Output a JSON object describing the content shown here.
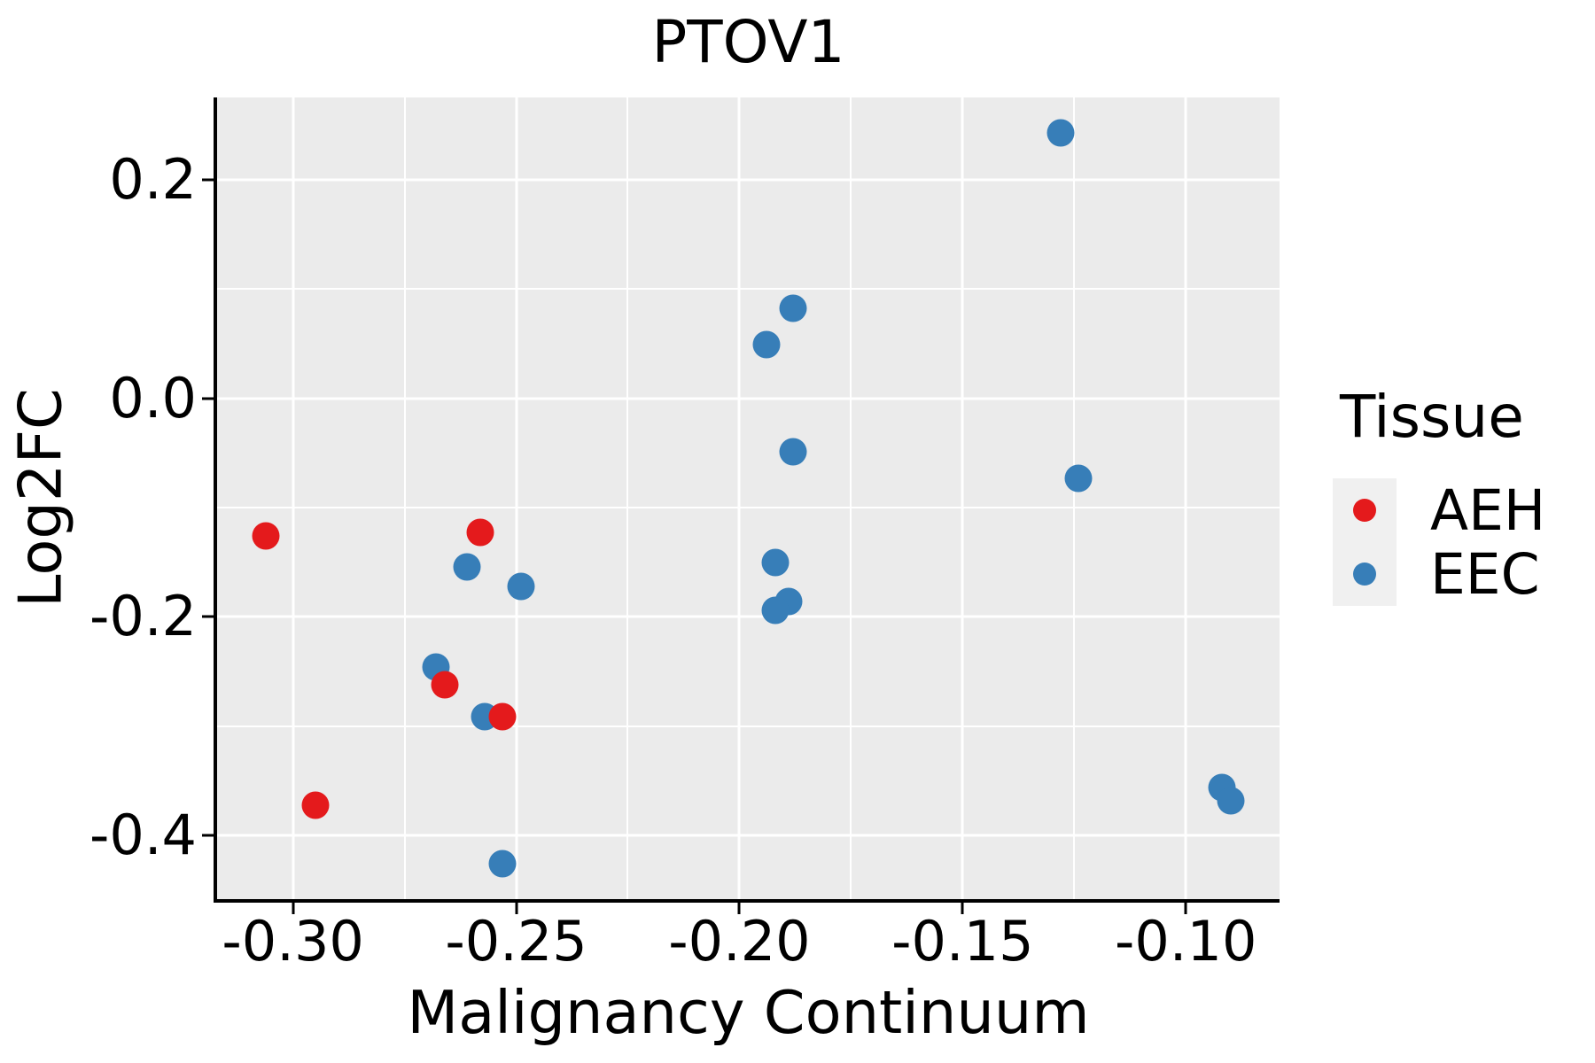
{
  "chart_data": {
    "type": "scatter",
    "title": "PTOV1",
    "xlabel": "Malignancy Continuum",
    "ylabel": "Log2FC",
    "xlim": [
      -0.317,
      -0.079
    ],
    "ylim": [
      -0.458,
      0.275
    ],
    "grid": true,
    "panel_background": "#EBEBEB",
    "gridline_color": "#FFFFFF",
    "axis_color": "#000000",
    "x_ticks": [
      {
        "value": -0.3,
        "label": "-0.30"
      },
      {
        "value": -0.25,
        "label": "-0.25"
      },
      {
        "value": -0.2,
        "label": "-0.20"
      },
      {
        "value": -0.15,
        "label": "-0.15"
      },
      {
        "value": -0.1,
        "label": "-0.10"
      }
    ],
    "y_ticks": [
      {
        "value": 0.2,
        "label": "0.2"
      },
      {
        "value": 0.0,
        "label": "0.0"
      },
      {
        "value": -0.2,
        "label": "-0.2"
      },
      {
        "value": -0.4,
        "label": "-0.4"
      }
    ],
    "x_minor_ticks": [
      -0.275,
      -0.225,
      -0.175,
      -0.125
    ],
    "y_minor_ticks": [
      0.1,
      -0.1,
      -0.3
    ],
    "legend": {
      "title": "Tissue",
      "position": "right",
      "key_fill": "#F0F0F0"
    },
    "series": [
      {
        "name": "AEH",
        "color": "#E41A1C",
        "points": [
          [
            -0.306,
            -0.126
          ],
          [
            -0.258,
            -0.123
          ],
          [
            -0.266,
            -0.262
          ],
          [
            -0.253,
            -0.291
          ],
          [
            -0.295,
            -0.372
          ]
        ]
      },
      {
        "name": "EEC",
        "color": "#377EB8",
        "points": [
          [
            -0.128,
            0.243
          ],
          [
            -0.188,
            0.082
          ],
          [
            -0.194,
            0.049
          ],
          [
            -0.188,
            -0.049
          ],
          [
            -0.124,
            -0.073
          ],
          [
            -0.192,
            -0.15
          ],
          [
            -0.261,
            -0.154
          ],
          [
            -0.249,
            -0.172
          ],
          [
            -0.189,
            -0.186
          ],
          [
            -0.192,
            -0.194
          ],
          [
            -0.268,
            -0.246
          ],
          [
            -0.257,
            -0.291
          ],
          [
            -0.092,
            -0.356
          ],
          [
            -0.09,
            -0.368
          ],
          [
            -0.253,
            -0.426
          ]
        ]
      }
    ]
  }
}
